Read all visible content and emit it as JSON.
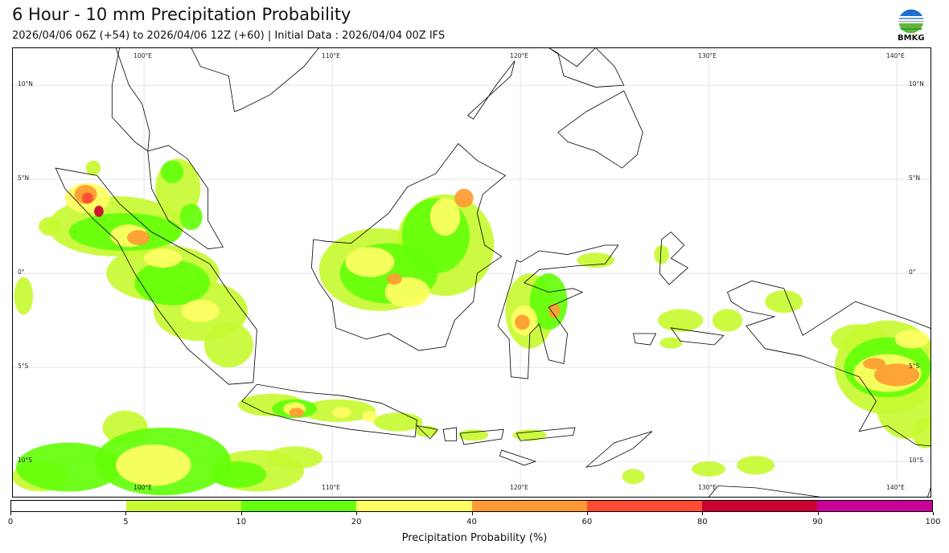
{
  "header": {
    "title": "6 Hour - 10 mm Precipitation Probability",
    "subtitle": "2026/04/06 06Z (+54) to 2026/04/06 12Z (+60) | Initial Data : 2026/04/04 00Z IFS",
    "logo_text": "BMKG"
  },
  "map": {
    "lon_labels": [
      "100°E",
      "110°E",
      "120°E",
      "130°E",
      "140°E"
    ],
    "lat_labels": [
      "10°N",
      "5°N",
      "0°",
      "5°S",
      "10°S"
    ]
  },
  "colorbar": {
    "label": "Precipitation Probability (%)",
    "ticks": [
      "0",
      "5",
      "10",
      "20",
      "40",
      "60",
      "80",
      "90",
      "100"
    ],
    "colors": [
      "#ffffff",
      "#c8fa32",
      "#64ff0a",
      "#ffff64",
      "#ff9b32",
      "#ff4b32",
      "#cd0032",
      "#c80096"
    ]
  }
}
